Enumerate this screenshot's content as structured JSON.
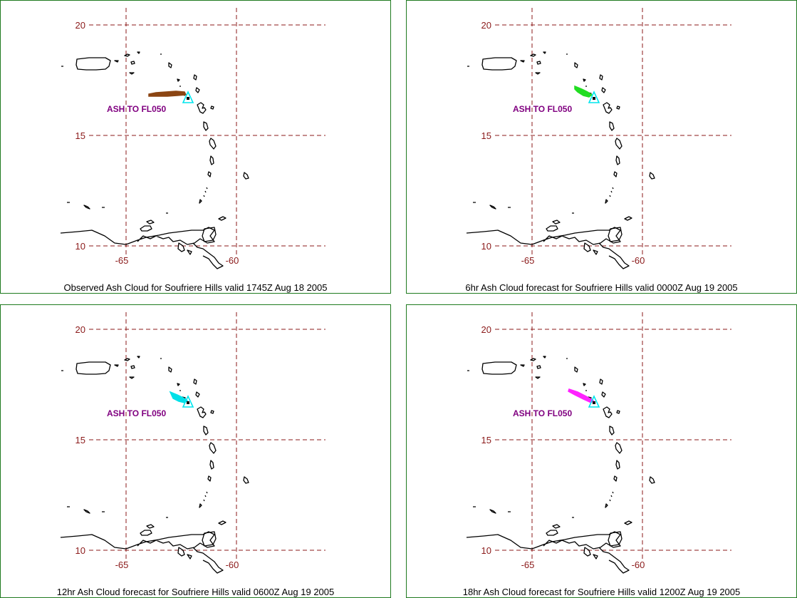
{
  "map_grid": {
    "lat_labels": [
      "20",
      "15",
      "10"
    ],
    "lon_labels": [
      "-65",
      "-60"
    ]
  },
  "volcano_marker_color": "#00e5ee",
  "panels": [
    {
      "caption": "Observed Ash Cloud for Soufriere  Hills valid 1745Z Aug 18 2005",
      "ash_label": "ASH TO FL050",
      "ash_color": "#8b4513"
    },
    {
      "caption": "6hr Ash Cloud forecast for Soufriere  Hills valid 0000Z Aug 19 2005",
      "ash_label": "ASH TO FL050",
      "ash_color": "#22dd22"
    },
    {
      "caption": "12hr Ash Cloud forecast for Soufriere  Hills valid 0600Z Aug 19 2005",
      "ash_label": "ASH TO FL050",
      "ash_color": "#00e0e8"
    },
    {
      "caption": "18hr Ash Cloud forecast for Soufriere  Hills valid 1200Z Aug 19 2005",
      "ash_label": "ASH TO FL050",
      "ash_color": "#ff22ff"
    }
  ]
}
